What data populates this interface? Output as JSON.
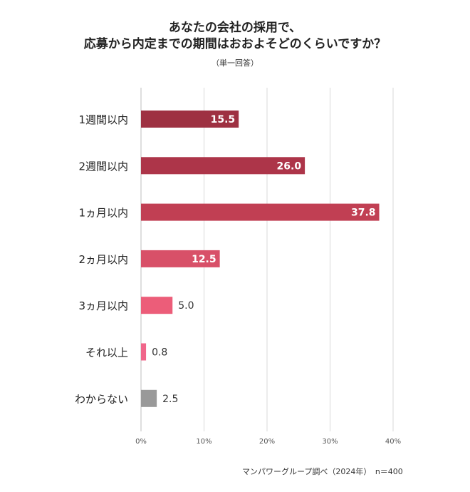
{
  "title_line1": "あなたの会社の採用で、",
  "title_line2": "応募から内定までの期間はおおよそどのくらいですか？",
  "subtitle": "（単一回答）",
  "source": "マンパワーグループ調べ（2024年）　n＝400",
  "chart_data": {
    "type": "bar",
    "orientation": "horizontal",
    "categories": [
      "1週間以内",
      "2週間以内",
      "1ヵ月以内",
      "2ヵ月以内",
      "3ヵ月以内",
      "それ以上",
      "わからない"
    ],
    "values": [
      15.5,
      26.0,
      37.8,
      12.5,
      5.0,
      0.8,
      2.5
    ],
    "value_labels": [
      "15.5",
      "26.0",
      "37.8",
      "12.5",
      "5.0",
      "0.8",
      "2.5"
    ],
    "colors": [
      "#9e3142",
      "#ad3549",
      "#c13f53",
      "#d85068",
      "#ec5d79",
      "#f0668a",
      "#999999"
    ],
    "xlim": [
      0,
      40
    ],
    "xticks": [
      "0%",
      "10%",
      "20%",
      "30%",
      "40%"
    ],
    "grid": true,
    "title": "あなたの会社の採用で、応募から内定までの期間はおおよそどのくらいですか？"
  }
}
